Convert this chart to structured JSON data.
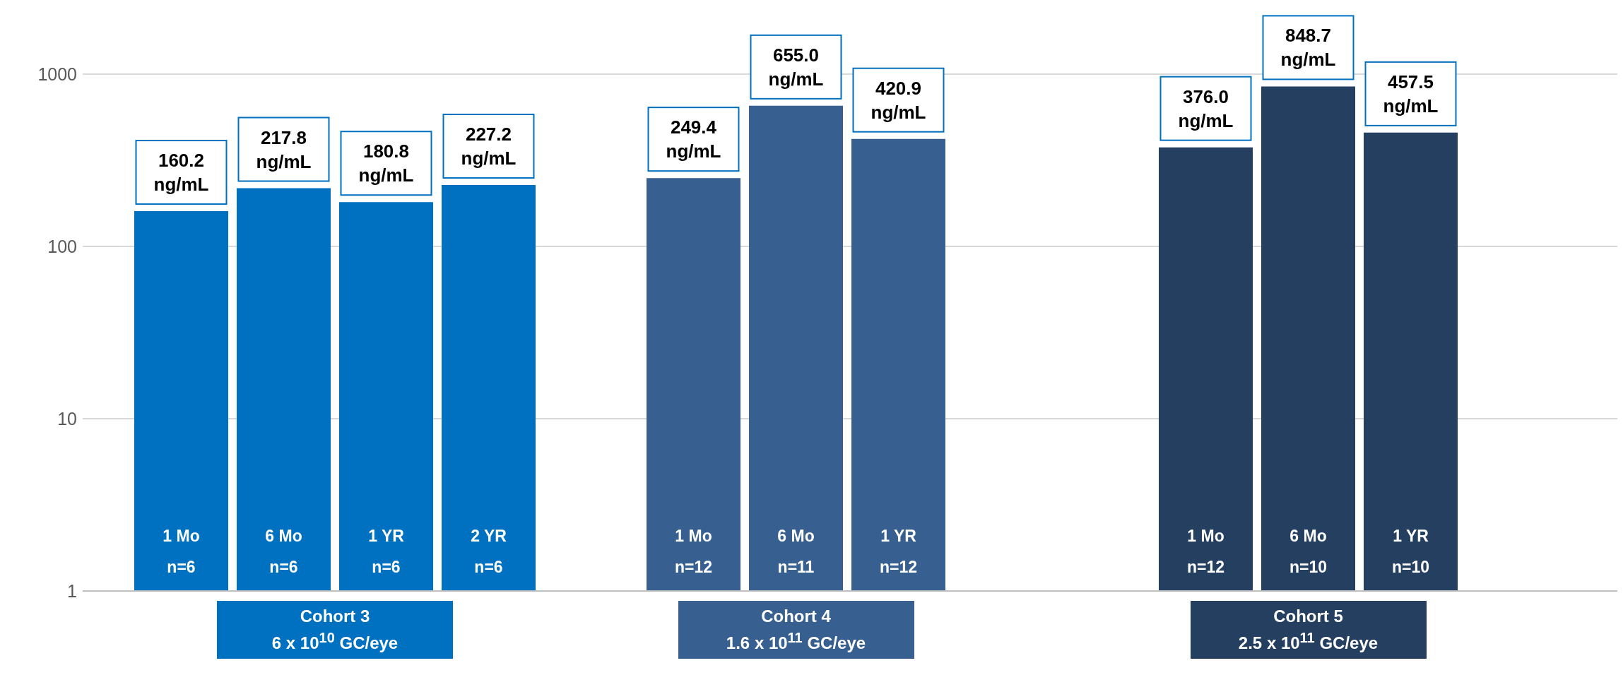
{
  "chart_data": {
    "type": "bar",
    "categories": [
      "1 Mo\nn=6",
      "6 Mo\nn=6",
      "1 YR\nn=6",
      "2 YR\nn=6",
      null,
      "1 Mo\nn=12",
      "6 Mo\nn=11",
      "1 YR\nn=12",
      null,
      null,
      "1 Mo\nn=12",
      "6 Mo\nn=10",
      "1 YR\nn=10"
    ],
    "values": [
      160.2,
      217.8,
      180.8,
      227.2,
      null,
      249.4,
      655.0,
      420.9,
      null,
      null,
      376.0,
      848.7,
      457.5
    ],
    "colors": [
      "#0070c0",
      "#0070c0",
      "#0070c0",
      "#0070c0",
      null,
      "#375f8f",
      "#375f8f",
      "#375f8f",
      null,
      null,
      "#243f60",
      "#243f60",
      "#243f60"
    ],
    "value_labels": [
      "160.2 ng/mL",
      "217.8 ng/mL",
      "180.8 ng/mL",
      "227.2 ng/mL",
      null,
      "249.4 ng/mL",
      "655.0 ng/mL",
      "420.9 ng/mL",
      null,
      null,
      "376.0 ng/mL",
      "848.7 ng/mL",
      "457.5 ng/mL"
    ],
    "annotations": [
      "Cohort 3\n6 x 10$^{10}$ GC/eye",
      "Cohort 4\n1.6 x 10$^{11}$ GC/eye",
      "Cohort 5\n2.5 x 10$^{11}$ GC/eye"
    ],
    "log": true,
    "ylim": [
      1,
      1000
    ],
    "yticks": [
      1,
      10,
      100,
      1000
    ],
    "grid": "y",
    "legend": false
  }
}
